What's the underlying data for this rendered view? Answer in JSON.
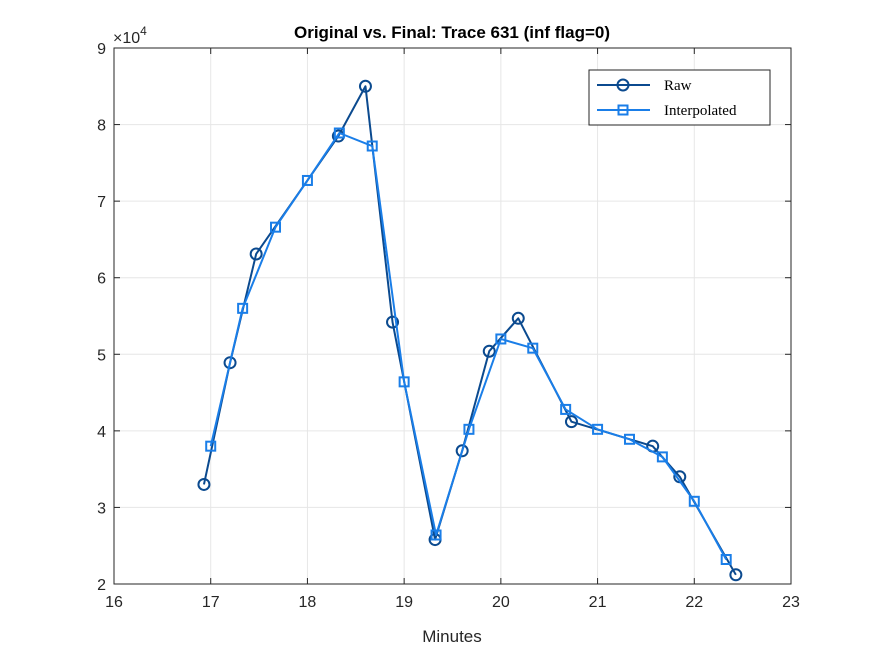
{
  "chart_data": {
    "type": "line",
    "title": "Original vs. Final: Trace 631 (inf flag=0)",
    "xlabel": "Minutes",
    "ylabel": "",
    "exponent_label": "×10",
    "exponent_power": "4",
    "xlim": [
      16,
      23
    ],
    "ylim": [
      2,
      9
    ],
    "y_scale_factor": 10000,
    "xticks": [
      "16",
      "17",
      "18",
      "19",
      "20",
      "21",
      "22",
      "23"
    ],
    "yticks": [
      "2",
      "3",
      "4",
      "5",
      "6",
      "7",
      "8",
      "9"
    ],
    "grid": true,
    "legend_position": "top-right",
    "series": [
      {
        "name": "Raw",
        "color": "#0b4a8f",
        "marker": "circle",
        "points": [
          [
            16.93,
            3.3
          ],
          [
            17.2,
            4.89
          ],
          [
            17.47,
            6.31
          ],
          [
            18.32,
            7.85
          ],
          [
            18.6,
            8.5
          ],
          [
            18.88,
            5.42
          ],
          [
            19.32,
            2.58
          ],
          [
            19.6,
            3.74
          ],
          [
            19.88,
            5.04
          ],
          [
            20.18,
            5.47
          ],
          [
            20.73,
            4.12
          ],
          [
            21.57,
            3.8
          ],
          [
            21.85,
            3.4
          ],
          [
            22.43,
            2.12
          ]
        ]
      },
      {
        "name": "Interpolated",
        "color": "#1a7ee8",
        "marker": "square",
        "points": [
          [
            17.0,
            3.8
          ],
          [
            17.33,
            5.6
          ],
          [
            17.67,
            6.66
          ],
          [
            18.0,
            7.27
          ],
          [
            18.33,
            7.89
          ],
          [
            18.67,
            7.72
          ],
          [
            19.0,
            4.64
          ],
          [
            19.33,
            2.64
          ],
          [
            19.67,
            4.02
          ],
          [
            20.0,
            5.2
          ],
          [
            20.33,
            5.08
          ],
          [
            20.67,
            4.28
          ],
          [
            21.0,
            4.02
          ],
          [
            21.33,
            3.89
          ],
          [
            21.67,
            3.66
          ],
          [
            22.0,
            3.08
          ],
          [
            22.33,
            2.32
          ]
        ]
      }
    ]
  }
}
